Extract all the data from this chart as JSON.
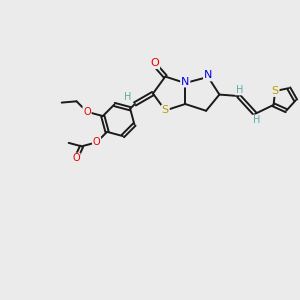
{
  "bg_color": "#ebebeb",
  "atom_colors": {
    "H": "#5fa8a8",
    "N": "#0000ee",
    "O": "#ee0000",
    "S": "#b8a000"
  },
  "bond_color": "#1a1a1a",
  "figsize": [
    3.0,
    3.0
  ],
  "dpi": 100,
  "lw": 1.4,
  "fs": 7.0
}
